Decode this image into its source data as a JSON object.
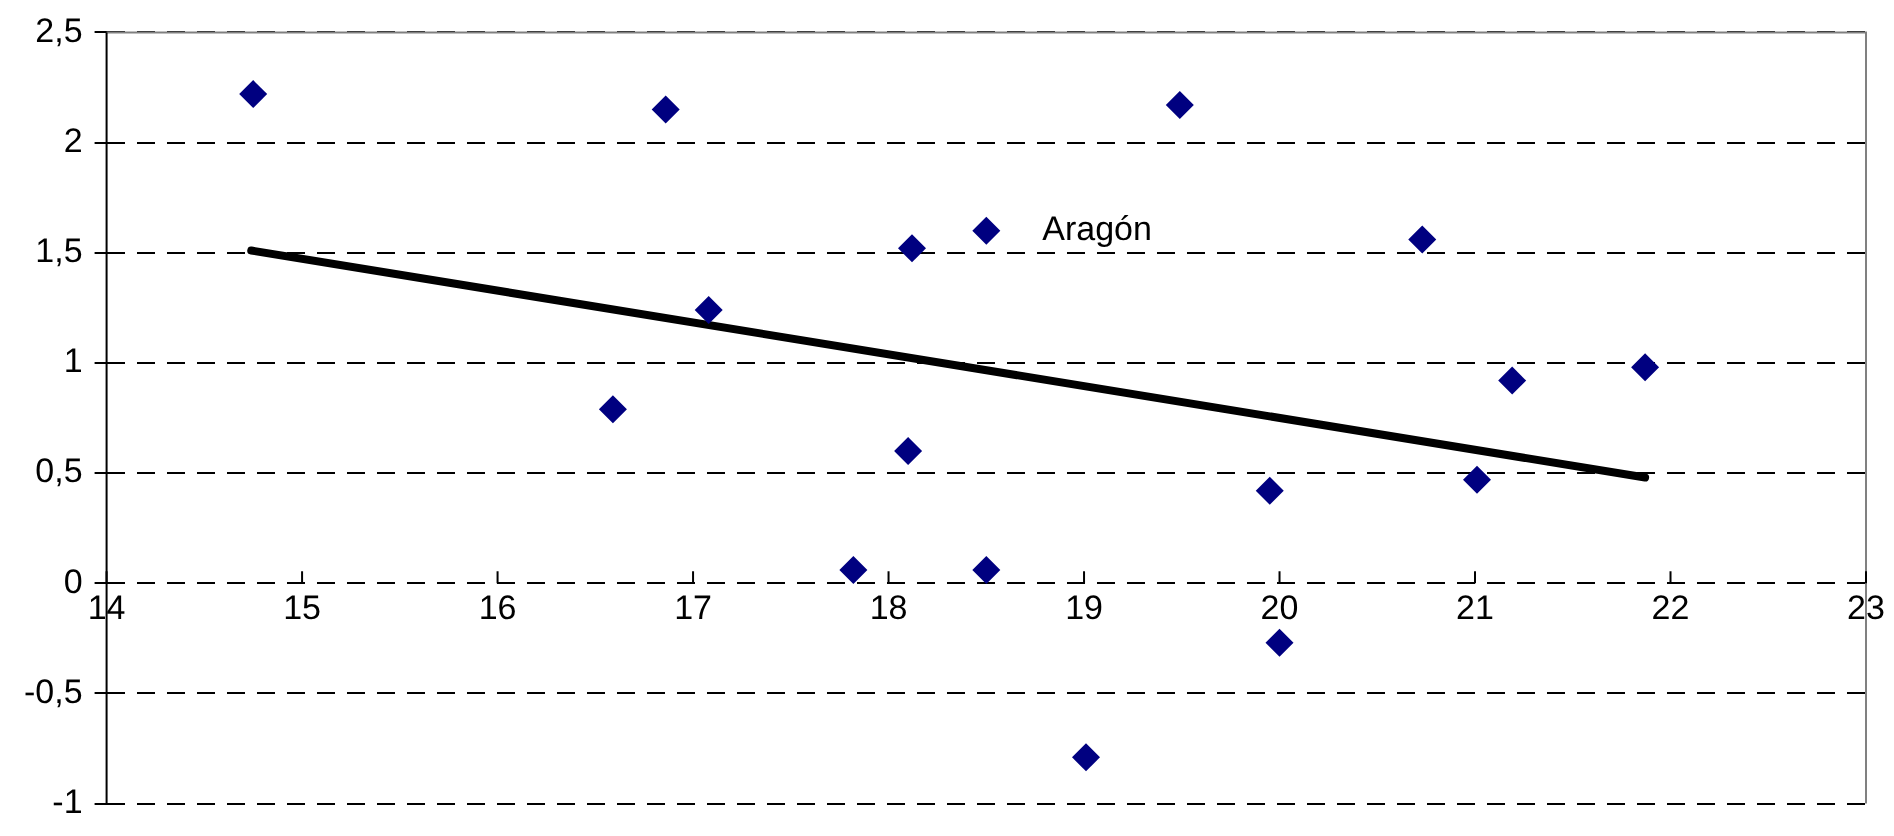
{
  "chart_data": {
    "type": "scatter",
    "marker": "diamond",
    "grid": "y",
    "legend": false,
    "xlim": [
      14,
      23
    ],
    "xticks": [
      14,
      15,
      16,
      17,
      18,
      19,
      20,
      21,
      22,
      23
    ],
    "ylim": [
      -1,
      2.5
    ],
    "yticks": [
      {
        "value": 2.5,
        "label": "2,5"
      },
      2,
      {
        "value": 1.5,
        "label": "1,5"
      },
      1,
      {
        "value": 0.5,
        "label": "0,5"
      },
      0,
      {
        "value": -0.5,
        "label": "-0,5"
      },
      -1
    ],
    "annotations": [
      {
        "text": "Aragón",
        "x": 18.5,
        "y": 1.6
      }
    ],
    "series": [
      {
        "type": "scatter",
        "color": "#000080",
        "x": [
          14.75,
          16.59,
          16.86,
          17.08,
          17.82,
          18.1,
          18.12,
          18.5,
          18.5,
          19.49,
          19.01,
          19.95,
          20.0,
          20.73,
          21.01,
          21.19,
          21.87
        ],
        "values": [
          2.22,
          0.79,
          2.15,
          1.24,
          0.06,
          0.6,
          1.52,
          1.6,
          0.06,
          2.17,
          -0.79,
          0.42,
          -0.27,
          1.56,
          0.47,
          0.92,
          0.98
        ]
      },
      {
        "type": "line",
        "color": "#000000",
        "marker": "none",
        "x": [
          14.74,
          21.87
        ],
        "values": [
          1.51,
          0.48
        ]
      }
    ]
  }
}
